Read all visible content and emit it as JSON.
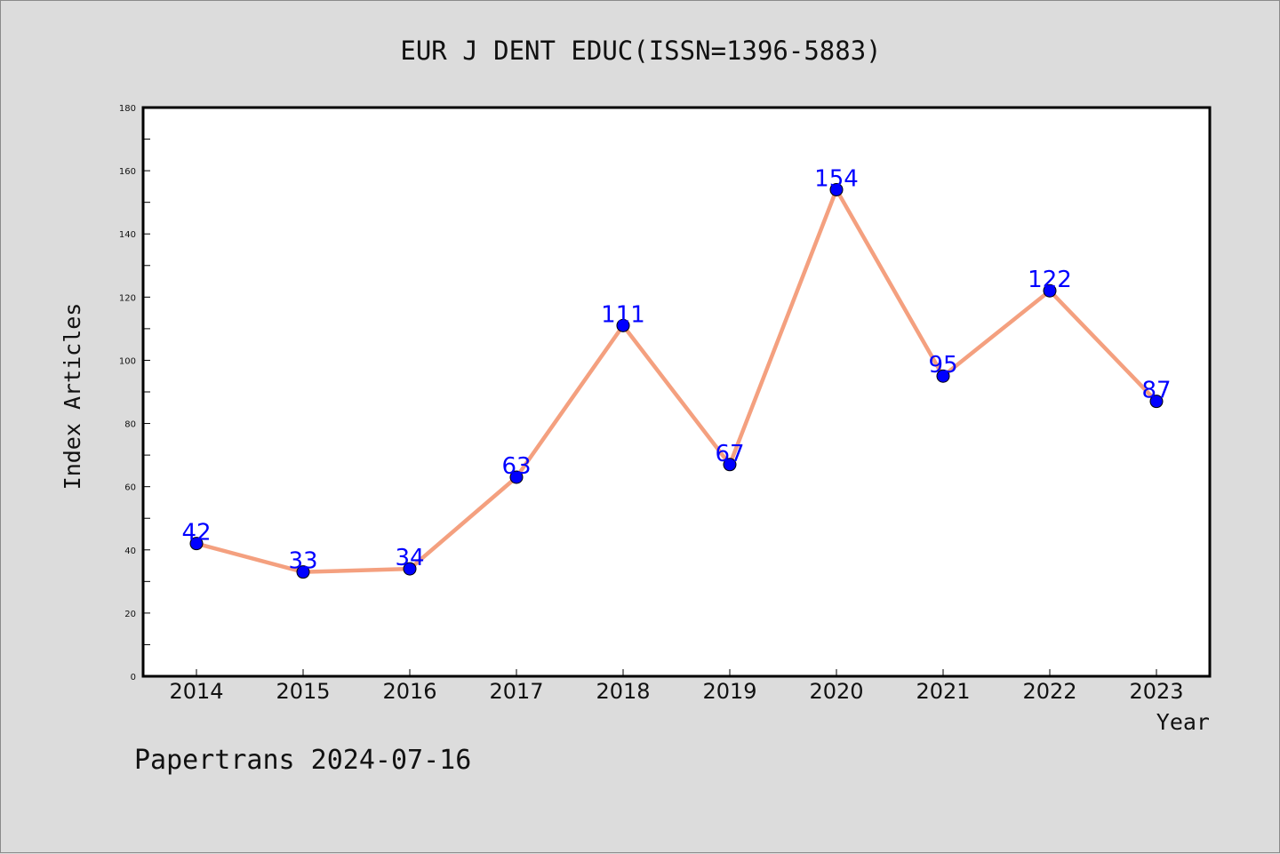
{
  "chart_data": {
    "type": "line",
    "title": "EUR J DENT EDUC(ISSN=1396-5883)",
    "xlabel": "Year",
    "ylabel": "Index Articles",
    "categories": [
      "2014",
      "2015",
      "2016",
      "2017",
      "2018",
      "2019",
      "2020",
      "2021",
      "2022",
      "2023"
    ],
    "values": [
      42,
      33,
      34,
      63,
      111,
      67,
      154,
      95,
      122,
      87
    ],
    "ylim": [
      0,
      180
    ],
    "yticks": [
      0,
      20,
      40,
      60,
      80,
      100,
      120,
      140,
      160,
      180
    ],
    "grid": false,
    "legend": "none",
    "line_color": "#f4a07f",
    "marker_color": "#0000ff",
    "label_color": "#0000ff"
  },
  "footer": "Papertrans 2024-07-16"
}
